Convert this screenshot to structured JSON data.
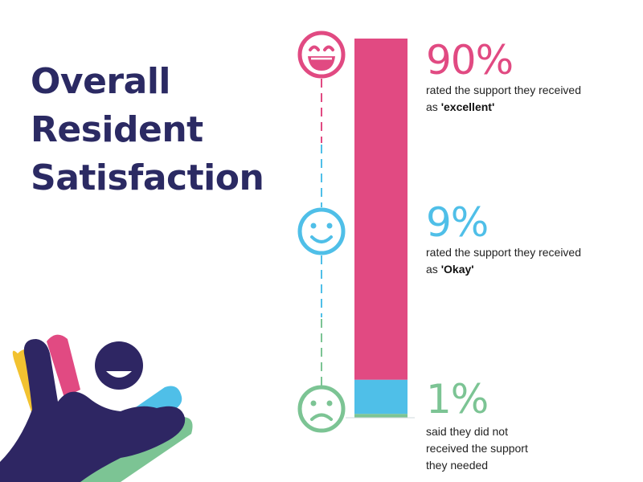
{
  "title": {
    "line1": "Overall",
    "line2": "Resident",
    "line3": "Satisfaction"
  },
  "colors": {
    "title": "#2b2a63",
    "excellent": "#e14a82",
    "okay": "#4fbfe8",
    "not_received": "#7cc494"
  },
  "icons": {
    "excellent": "laughing-face-icon",
    "okay": "smiling-face-icon",
    "not_received": "sad-face-icon",
    "decoration": "colorful-hand-illustration"
  },
  "chart_data": {
    "type": "bar",
    "layout": "single-stacked",
    "series": [
      {
        "key": "excellent",
        "value": 90
      },
      {
        "key": "okay",
        "value": 9
      },
      {
        "key": "not_received",
        "value": 1
      }
    ]
  },
  "stats": {
    "excellent": {
      "pct": "90%",
      "text_pre": "rated the support they received as ",
      "text_bold": "'excellent'"
    },
    "okay": {
      "pct": "9%",
      "text_pre": "rated the support they received as ",
      "text_bold": "'Okay'"
    },
    "not_received": {
      "line1": "said they did not",
      "line2": "received the support",
      "line3": "they needed",
      "pct": "1%"
    }
  }
}
